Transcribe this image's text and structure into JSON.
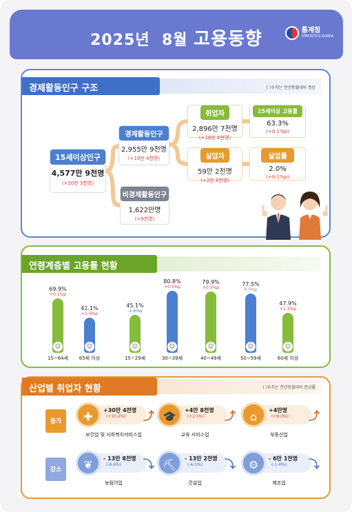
{
  "header": {
    "title_prefix": "2025년",
    "title_month": "8월",
    "title_main": "고용동향",
    "agency": "통계청",
    "agency_en": "STATISTICS KOREA"
  },
  "structure": {
    "title": "경제활동인구 구조",
    "note": "( )수치는 전년동월대비 증감",
    "pop15": {
      "label": "15세이상인구",
      "value": "4,577만 9천명",
      "change": "(+20만 3천명)"
    },
    "econ_active": {
      "label": "경제활동인구",
      "value": "2,955만 9천명",
      "change": "(+19만 4천명)"
    },
    "not_active": {
      "label": "비경제활동인구",
      "value": "1,622만명",
      "change": "(+9천명)"
    },
    "employed": {
      "label": "취업자",
      "value": "2,896만 7천명",
      "change": "(+16만 6천명)"
    },
    "emp_rate": {
      "label": "15세이상 고용률",
      "value": "63.3%",
      "change": "(+0.1%p)"
    },
    "unemployed": {
      "label": "실업자",
      "value": "59만 2천명",
      "change": "(+2만 8천명)"
    },
    "unemp_rate": {
      "label": "실업률",
      "value": "2.0%",
      "change": "(+0.1%p)"
    }
  },
  "age": {
    "title": "연령계층별 고용률 현황",
    "groups": [
      {
        "label": "15~64세",
        "pct": "69.9%",
        "change": "+0.1%p",
        "dir": "up",
        "value": 69.9
      },
      {
        "label": "65세 이상",
        "pct": "41.1%",
        "change": "+1.5%p",
        "dir": "up",
        "value": 41.1
      },
      {
        "label": "15~29세",
        "pct": "45.1%",
        "change": "-1.6%p",
        "dir": "down",
        "value": 45.1
      },
      {
        "label": "30~39세",
        "pct": "80.8%",
        "change": "+0.5%p",
        "dir": "up",
        "value": 80.8
      },
      {
        "label": "40~49세",
        "pct": "79.9%",
        "change": "+0.5%p",
        "dir": "up",
        "value": 79.9
      },
      {
        "label": "50~59세",
        "pct": "77.5%",
        "change": "0.0%p",
        "dir": "flat",
        "value": 77.5
      },
      {
        "label": "60세 이상",
        "pct": "47.9%",
        "change": "+1.1%p",
        "dir": "up",
        "value": 47.9
      }
    ]
  },
  "industry": {
    "title": "산업별 취업자 현황",
    "note": "( )수치는 전년동월대비 증감률",
    "increase_label": "증가",
    "decrease_label": "감소",
    "increase": [
      {
        "name": "보건업 및 사회복지서비스업",
        "value": "+30만 4천명",
        "rate": "(+10.2%)",
        "icon": "medical-icon"
      },
      {
        "name": "교육 서비스업",
        "value": "+4만 8천명",
        "rate": "(+2.5%)",
        "icon": "graduation-icon"
      },
      {
        "name": "부동산업",
        "value": "+4만명",
        "rate": "(+8.0%)",
        "icon": "house-icon"
      }
    ],
    "decrease": [
      {
        "name": "농림어업",
        "value": "- 13만 8천명",
        "rate": "(-8.6%)",
        "icon": "wheat-icon"
      },
      {
        "name": "건설업",
        "value": "- 13만 2천명",
        "rate": "(-6.5%)",
        "icon": "excavator-icon"
      },
      {
        "name": "제조업",
        "value": "- 6만 1천명",
        "rate": "(-1.4%)",
        "icon": "gear-icon"
      }
    ]
  }
}
